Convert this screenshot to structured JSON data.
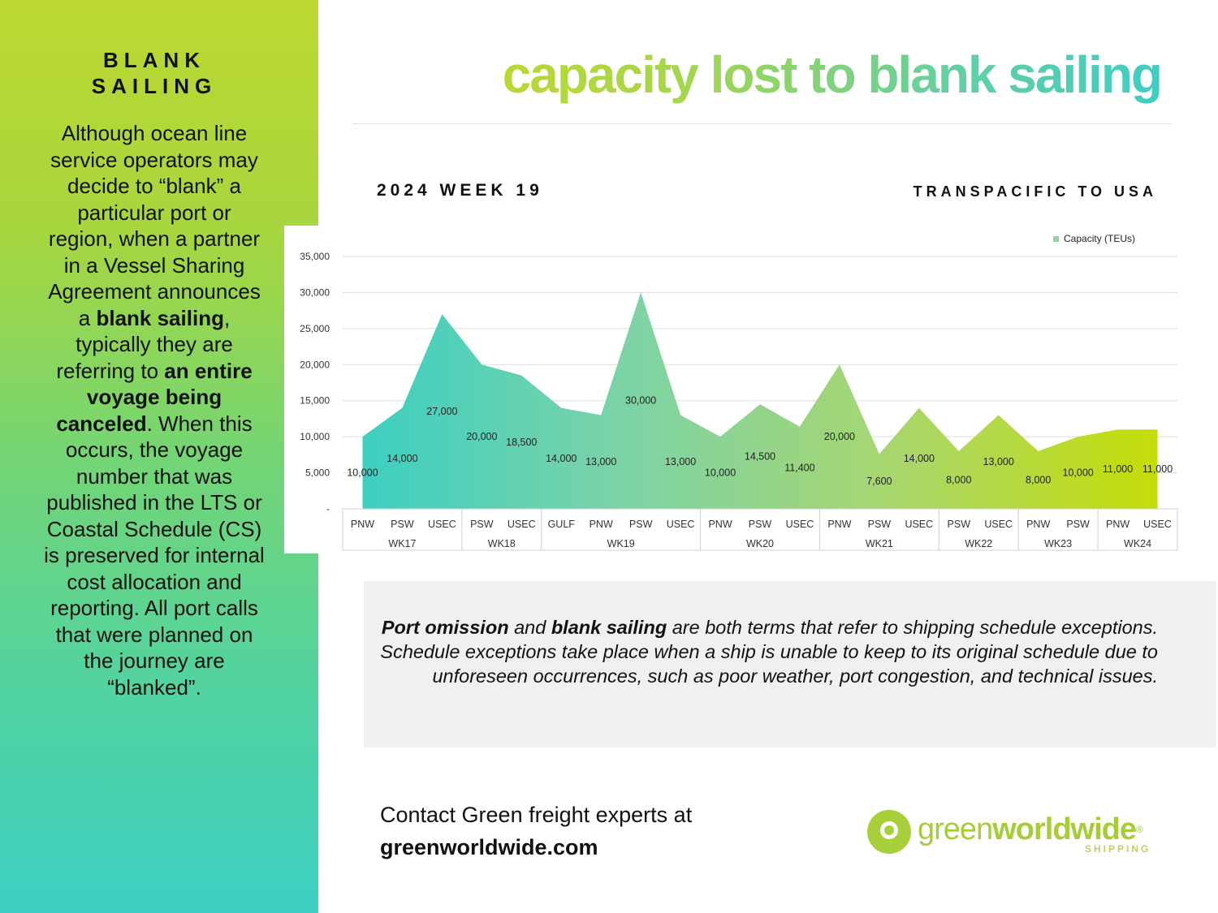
{
  "sidebar": {
    "title_line1": "BLANK",
    "title_line2": "SAILING",
    "body": {
      "p1": "Although ocean line service operators may decide to “blank” a particular port or region, when a partner in a Vessel Sharing Agreement announces a ",
      "b1": "blank sailing",
      "p2": ", typically they are referring to ",
      "b2": "an entire voyage being canceled",
      "p3": ". When this occurs, the voyage number that was published in the LTS or Coastal Schedule (CS) is preserved for internal cost allocation and reporting. All port calls that were planned on the journey are “blanked”."
    }
  },
  "header": {
    "title": "capacity lost to blank sailing",
    "week_label": "2024 WEEK 19",
    "region_label": "TRANSPACIFIC TO USA"
  },
  "chart_data": {
    "type": "area",
    "title": "",
    "xlabel": "",
    "ylabel": "",
    "ylim": [
      0,
      35000
    ],
    "yticks": [
      0,
      5000,
      10000,
      15000,
      20000,
      25000,
      30000,
      35000
    ],
    "ytick_labels": [
      "-",
      "5,000",
      "10,000",
      "15,000",
      "20,000",
      "25,000",
      "30,000",
      "35,000"
    ],
    "grid": true,
    "legend_position": "top-right",
    "series": [
      {
        "name": "Capacity (TEUs)",
        "values": [
          10000,
          14000,
          27000,
          20000,
          18500,
          14000,
          13000,
          30000,
          13000,
          10000,
          14500,
          11400,
          20000,
          7600,
          14000,
          8000,
          13000,
          8000,
          10000,
          11000,
          11000
        ],
        "value_labels": [
          "10,000",
          "14,000",
          "27,000",
          "20,000",
          "18,500",
          "14,000",
          "13,000",
          "30,000",
          "13,000",
          "10,000",
          "14,500",
          "11,400",
          "20,000",
          "7,600",
          "14,000",
          "8,000",
          "13,000",
          "8,000",
          "10,000",
          "11,000",
          "11,000"
        ]
      }
    ],
    "categories": [
      "PNW",
      "PSW",
      "USEC",
      "PSW",
      "USEC",
      "GULF",
      "PNW",
      "PSW",
      "USEC",
      "PNW",
      "PSW",
      "USEC",
      "PNW",
      "PSW",
      "USEC",
      "PSW",
      "USEC",
      "PNW",
      "PSW",
      "PNW",
      "USEC"
    ],
    "groups": [
      {
        "label": "WK17",
        "count": 3
      },
      {
        "label": "WK18",
        "count": 2
      },
      {
        "label": "WK19",
        "count": 4
      },
      {
        "label": "WK20",
        "count": 3
      },
      {
        "label": "WK21",
        "count": 3
      },
      {
        "label": "WK22",
        "count": 2
      },
      {
        "label": "WK23",
        "count": 2
      },
      {
        "label": "WK24",
        "count": 2
      }
    ],
    "colors": [
      "#3dcfc2",
      "#7dd3a6",
      "#a8d66e",
      "#c5dd08"
    ]
  },
  "info": {
    "b1": "Port omission",
    "t1": " and ",
    "b2": "blank sailing",
    "t2": " are both terms that refer to shipping schedule exceptions. Schedule exceptions take place when a ship is unable to keep to its original schedule due to unforeseen occurrences, such as poor weather, port congestion, and technical issues."
  },
  "contact": {
    "line1": "Contact Green freight experts at",
    "url": "greenworldwide.com"
  },
  "logo": {
    "word1": "green",
    "word2": "worldwide",
    "reg": "®",
    "sub": "SHIPPING"
  }
}
